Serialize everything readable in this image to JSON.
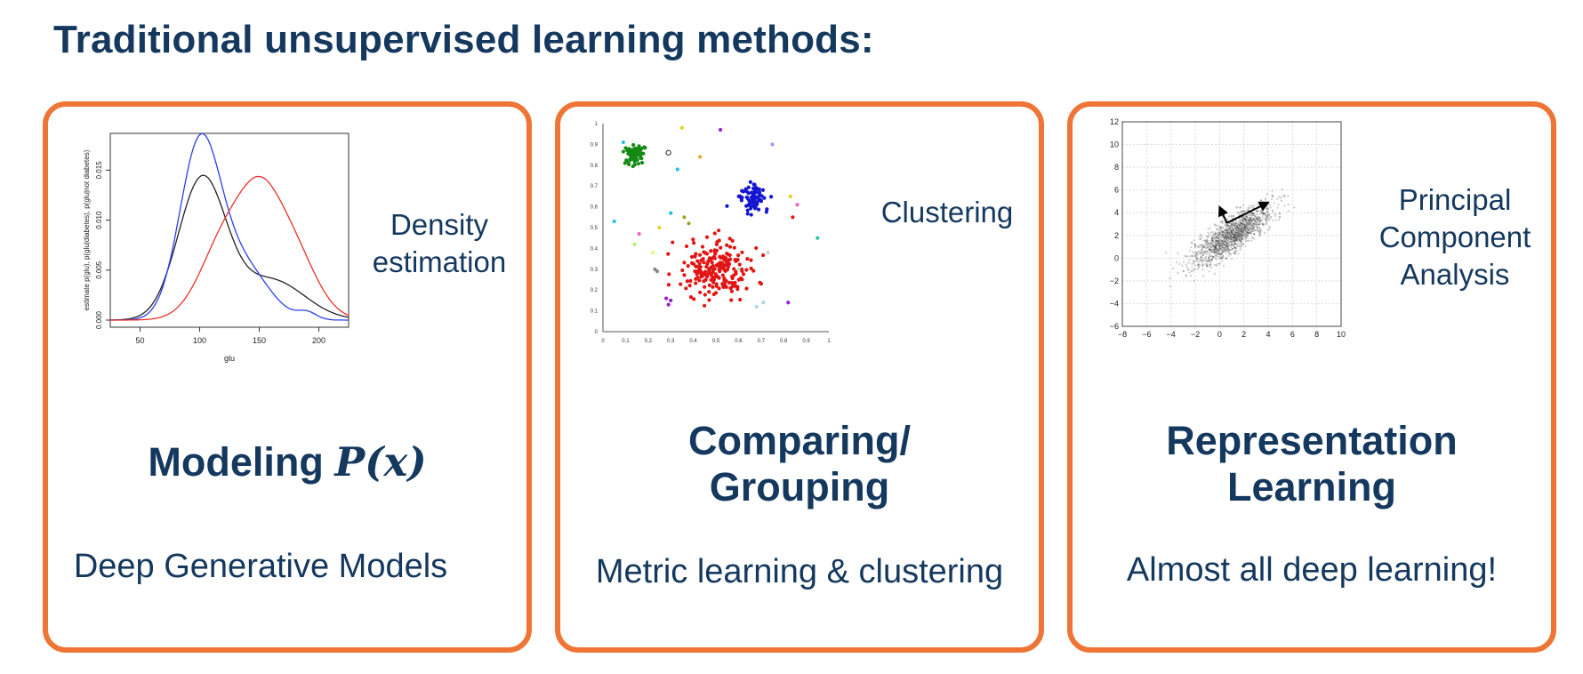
{
  "title": "Traditional unsupervised learning methods:",
  "colors": {
    "accent": "#ee7535",
    "text": "#14385e"
  },
  "cards": [
    {
      "side_label_lines": [
        "Density",
        "estimation"
      ],
      "heading_text": "Modeling",
      "heading_math": "P(x)",
      "subtitle": "Deep Generative Models"
    },
    {
      "side_label_lines": [
        "Clustering"
      ],
      "heading_lines": [
        "Comparing/",
        "Grouping"
      ],
      "subtitle": "Metric learning & clustering"
    },
    {
      "side_label_lines": [
        "Principal",
        "Component",
        "Analysis"
      ],
      "heading_lines": [
        "Representation",
        "Learning"
      ],
      "subtitle": "Almost all deep learning!"
    }
  ],
  "density_plot": {
    "xlabel": "glu",
    "ylabel": "estimate p(glu), p(glu|diabetes), p(glu|not diabetes)",
    "x_ticks": [
      "50",
      "100",
      "150",
      "200"
    ],
    "y_ticks": [
      "0.000",
      "0.005",
      "0.010",
      "0.015"
    ]
  },
  "cluster_plot": {
    "x_ticks": [
      "0",
      "0.1",
      "0.2",
      "0.3",
      "0.4",
      "0.5",
      "0.6",
      "0.7",
      "0.8",
      "0.9",
      "1"
    ],
    "y_ticks": [
      "0",
      "0.1",
      "0.2",
      "0.3",
      "0.4",
      "0.5",
      "0.6",
      "0.7",
      "0.8",
      "0.9",
      "1"
    ]
  },
  "pca_plot": {
    "x_ticks": [
      "−8",
      "−6",
      "−4",
      "−2",
      "0",
      "2",
      "4",
      "6",
      "8",
      "10"
    ],
    "y_ticks": [
      "−6",
      "−4",
      "−2",
      "0",
      "2",
      "4",
      "6",
      "8",
      "10",
      "12"
    ]
  }
}
